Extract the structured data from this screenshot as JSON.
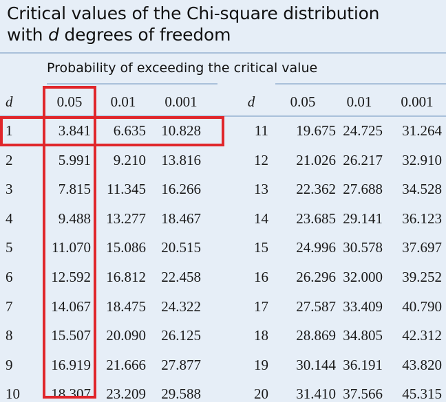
{
  "title": {
    "line1": "Critical values of the Chi-square distribution",
    "line2_prefix": "with ",
    "line2_var": "d",
    "line2_suffix": " degrees of freedom"
  },
  "subheading": "Probability of exceeding the critical value",
  "headers": {
    "left": [
      "d",
      "0.05",
      "0.01",
      "0.001"
    ],
    "right": [
      "d",
      "0.05",
      "0.01",
      "0.001"
    ]
  },
  "rows_left": [
    [
      "1",
      "3.841",
      "6.635",
      "10.828"
    ],
    [
      "2",
      "5.991",
      "9.210",
      "13.816"
    ],
    [
      "3",
      "7.815",
      "11.345",
      "16.266"
    ],
    [
      "4",
      "9.488",
      "13.277",
      "18.467"
    ],
    [
      "5",
      "11.070",
      "15.086",
      "20.515"
    ],
    [
      "6",
      "12.592",
      "16.812",
      "22.458"
    ],
    [
      "7",
      "14.067",
      "18.475",
      "24.322"
    ],
    [
      "8",
      "15.507",
      "20.090",
      "26.125"
    ],
    [
      "9",
      "16.919",
      "21.666",
      "27.877"
    ],
    [
      "10",
      "18.307",
      "23.209",
      "29.588"
    ]
  ],
  "rows_right": [
    [
      "11",
      "19.675",
      "24.725",
      "31.264"
    ],
    [
      "12",
      "21.026",
      "26.217",
      "32.910"
    ],
    [
      "13",
      "22.362",
      "27.688",
      "34.528"
    ],
    [
      "14",
      "23.685",
      "29.141",
      "36.123"
    ],
    [
      "15",
      "24.996",
      "30.578",
      "37.697"
    ],
    [
      "16",
      "26.296",
      "32.000",
      "39.252"
    ],
    [
      "17",
      "27.587",
      "33.409",
      "40.790"
    ],
    [
      "18",
      "28.869",
      "34.805",
      "42.312"
    ],
    [
      "19",
      "30.144",
      "36.191",
      "43.820"
    ],
    [
      "20",
      "31.410",
      "37.566",
      "45.315"
    ]
  ],
  "colors": {
    "background": "#e6eef7",
    "rule": "#a9c0da",
    "highlight": "#e0262b",
    "text": "#1a1a1a"
  }
}
